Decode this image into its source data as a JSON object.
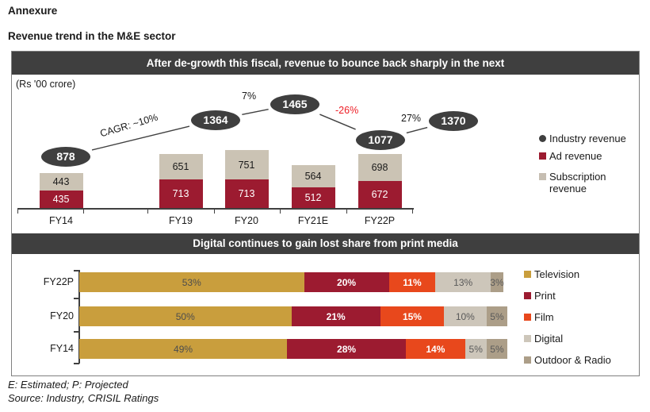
{
  "page": {
    "annexure": "Annexure",
    "heading": "Revenue trend in the M&E sector",
    "footnote1": "E: Estimated; P: Projected",
    "footnote2": "Source: Industry, CRISIL Ratings"
  },
  "colors": {
    "titlebar": "#3F3F3F",
    "bubble": "#3F3F3F",
    "ad_revenue": "#9C1B30",
    "subscription_revenue": "#CBC3B4",
    "television": "#C99E3D",
    "print": "#9C1B30",
    "film": "#E8481C",
    "digital": "#CDC6BA",
    "outdoor_radio": "#AC9E88",
    "negative_annotation": "#ED1C24",
    "axis": "#404040"
  },
  "chart_data": [
    {
      "type": "bar",
      "subtype": "vertical-stacked-with-total-line",
      "title": "After de-growth this fiscal, revenue to bounce back sharply in the next",
      "unit_label": "(Rs '00 crore)",
      "categories": [
        "FY14",
        "FY19",
        "FY20",
        "FY21E",
        "FY22P"
      ],
      "series": [
        {
          "name": "Ad revenue",
          "color": "#9C1B30",
          "label_color": "#FFFFFF",
          "values": [
            435,
            713,
            713,
            512,
            672
          ]
        },
        {
          "name": "Subscription revenue",
          "color": "#CBC3B4",
          "label_color": "#1a1a1a",
          "values": [
            443,
            651,
            751,
            564,
            698
          ]
        }
      ],
      "totals": {
        "name": "Industry revenue",
        "values": [
          878,
          1364,
          1465,
          1077,
          1370
        ]
      },
      "annotations": [
        {
          "text": "CAGR: ~10%",
          "color": "#1a1a1a"
        },
        {
          "text": "7%",
          "color": "#1a1a1a"
        },
        {
          "text": "-26%",
          "color": "#ED1C24"
        },
        {
          "text": "27%",
          "color": "#1a1a1a"
        }
      ],
      "legend": [
        "Industry revenue",
        "Ad revenue",
        "Subscription revenue"
      ],
      "legend_position": "right",
      "grid": false
    },
    {
      "type": "bar",
      "subtype": "horizontal-stacked-100pct",
      "title": "Digital continues to gain lost share from print media",
      "categories": [
        "FY22P",
        "FY20",
        "FY14"
      ],
      "series": [
        {
          "name": "Television",
          "color": "#C99E3D",
          "label_color": "#4D4D4D",
          "label_bold": false,
          "values": [
            53,
            50,
            49
          ]
        },
        {
          "name": "Print",
          "color": "#9C1B30",
          "label_color": "#FFFFFF",
          "label_bold": true,
          "values": [
            20,
            21,
            28
          ]
        },
        {
          "name": "Film",
          "color": "#E8481C",
          "label_color": "#FFFFFF",
          "label_bold": true,
          "values": [
            11,
            15,
            14
          ]
        },
        {
          "name": "Digital",
          "color": "#CDC6BA",
          "label_color": "#595959",
          "label_bold": false,
          "values": [
            13,
            10,
            5
          ]
        },
        {
          "name": "Outdoor & Radio",
          "color": "#AC9E88",
          "label_color": "#595959",
          "label_bold": false,
          "values": [
            3,
            5,
            5
          ]
        }
      ],
      "value_suffix": "%",
      "xlim": [
        0,
        100
      ],
      "legend_position": "right",
      "grid": false
    }
  ]
}
